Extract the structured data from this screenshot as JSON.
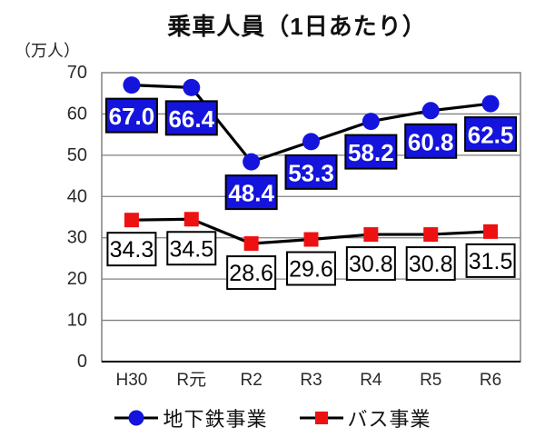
{
  "title": "乗車人員（1日あたり）",
  "y_unit_label": "（万人）",
  "chart_data": {
    "type": "line",
    "title": "乗車人員（1日あたり）",
    "ylabel": "（万人）",
    "categories": [
      "H30",
      "R元",
      "R2",
      "R3",
      "R4",
      "R5",
      "R6"
    ],
    "series": [
      {
        "key": "subway",
        "name": "地下鉄事業",
        "marker": "circle",
        "color": "#1414dd",
        "label_bg": "#1414dd",
        "label_text_color": "#ffffff",
        "values": [
          67.0,
          66.4,
          48.4,
          53.3,
          58.2,
          60.8,
          62.5
        ]
      },
      {
        "key": "bus",
        "name": "バス事業",
        "marker": "square",
        "color": "#ee1111",
        "label_bg": "#ffffff",
        "label_text_color": "#000000",
        "values": [
          34.3,
          34.5,
          28.6,
          29.6,
          30.8,
          30.8,
          31.5
        ]
      }
    ],
    "ylim": [
      0,
      70
    ],
    "ytick_step": 10,
    "yticks": [
      "0",
      "10",
      "20",
      "30",
      "40",
      "50",
      "60",
      "70"
    ],
    "grid": true,
    "grid_color": "#808080",
    "axis_color": "#000000",
    "line_color": "#000000",
    "legend_position": "bottom",
    "value_label_decimals": 1
  }
}
